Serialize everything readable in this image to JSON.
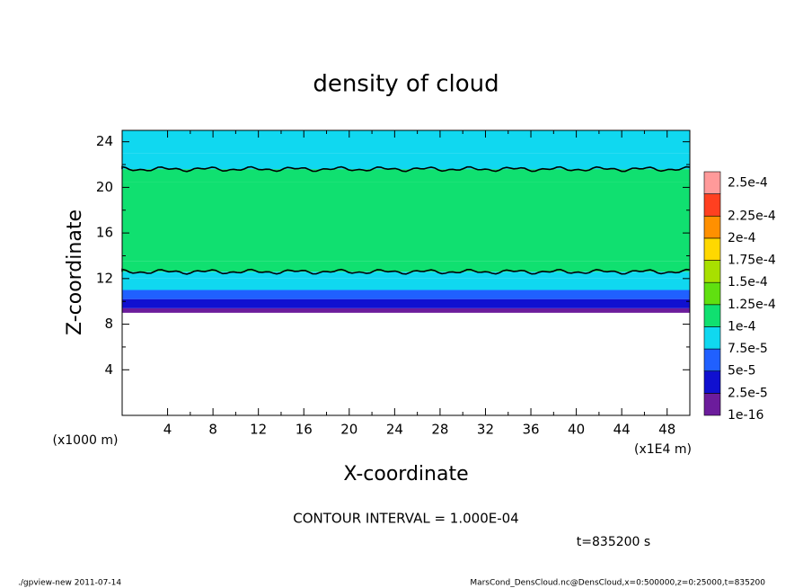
{
  "chart_data": {
    "type": "contour",
    "title": "density of cloud",
    "x_label": "X-coordinate",
    "y_label": "Z-coordinate",
    "x_unit": "(x1E4 m)",
    "y_unit": "(x1000 m)",
    "contour_note": "CONTOUR INTERVAL = 1.000E-04",
    "time_note": "t=835200 s",
    "footer_left": "./gpview-new  2011-07-14",
    "footer_right": "MarsCond_DensCloud.nc@DensCloud,x=0:500000,z=0:25000,t=835200",
    "xlim": [
      0,
      50
    ],
    "xticks": [
      4,
      8,
      12,
      16,
      20,
      24,
      28,
      32,
      36,
      40,
      44,
      48
    ],
    "ylim": [
      0,
      25
    ],
    "yticks": [
      4,
      8,
      12,
      16,
      20,
      24
    ],
    "z_bins": [
      9,
      9.4,
      10.2,
      11,
      12,
      12.6,
      13.5,
      20.5,
      21.6,
      23,
      25
    ],
    "values": [
      1e-05,
      4e-05,
      6e-05,
      8.5e-05,
      9.8e-05,
      0.000105,
      0.000115,
      0.000105,
      9.5e-05,
      8.5e-05
    ],
    "contour_interval": 0.0001,
    "levels": [
      {
        "value": 1e-16,
        "label": "1e-16"
      },
      {
        "value": 2.5e-05,
        "label": "2.5e-5"
      },
      {
        "value": 5e-05,
        "label": "5e-5"
      },
      {
        "value": 7.5e-05,
        "label": "7.5e-5"
      },
      {
        "value": 0.0001,
        "label": "1e-4"
      },
      {
        "value": 0.000125,
        "label": "1.25e-4"
      },
      {
        "value": 0.00015,
        "label": "1.5e-4"
      },
      {
        "value": 0.000175,
        "label": "1.75e-4"
      },
      {
        "value": 0.0002,
        "label": "2e-4"
      },
      {
        "value": 0.000225,
        "label": "2.25e-4"
      },
      {
        "value": 0.00025,
        "label": "2.5e-4"
      }
    ],
    "colors": [
      "#6c1c9c",
      "#1010d0",
      "#2060ff",
      "#10d8f0",
      "#10e070",
      "#60e010",
      "#a8e000",
      "#ffd800",
      "#ff9000",
      "#ff4020",
      "#ff9a9a"
    ]
  }
}
